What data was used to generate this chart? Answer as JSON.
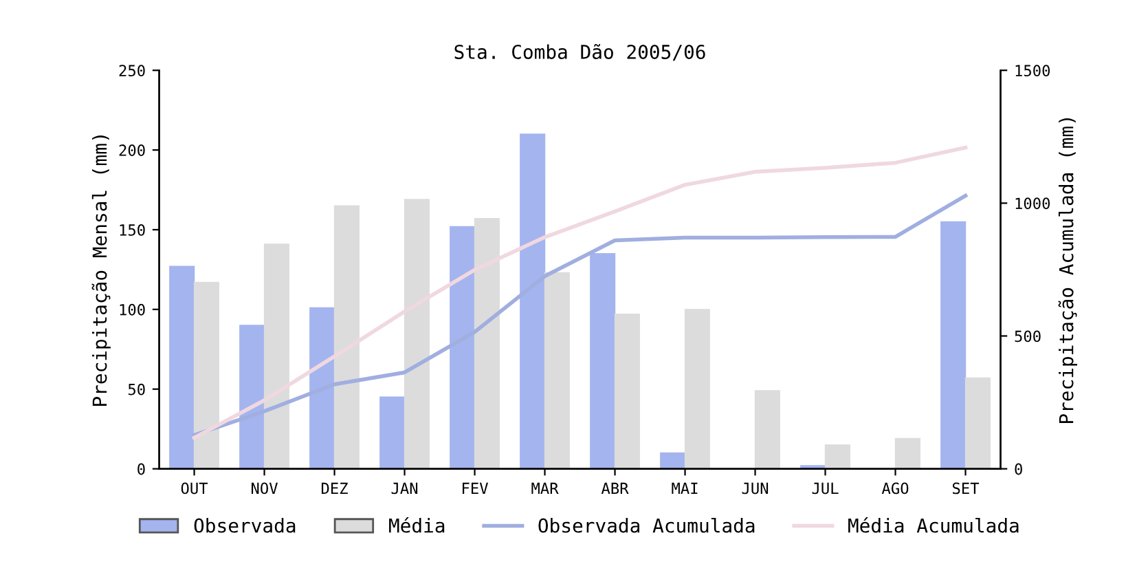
{
  "chart_data": {
    "type": "bar",
    "title": "Sta. Comba Dão 2005/06",
    "ylabel": "Precipitação Mensal (mm)",
    "y2label": "Precipitação Acumulada (mm)",
    "categories": [
      "OUT",
      "NOV",
      "DEZ",
      "JAN",
      "FEV",
      "MAR",
      "ABR",
      "MAI",
      "JUN",
      "JUL",
      "AGO",
      "SET"
    ],
    "series": [
      {
        "name": "Observada",
        "color": "#a4b4ee",
        "values": [
          127,
          90,
          101,
          45,
          152,
          210,
          135,
          10,
          0,
          2,
          null,
          155
        ]
      },
      {
        "name": "Média",
        "color": "#dcdcdc",
        "values": [
          117,
          141,
          165,
          169,
          157,
          123,
          97,
          100,
          49,
          15,
          19,
          57
        ]
      },
      {
        "name": "Observada Acumulada",
        "type": "line",
        "axis": "y2",
        "color": "#a0aee0",
        "values": [
          127,
          217,
          318,
          363,
          515,
          725,
          860,
          870,
          870,
          872,
          873,
          1028
        ]
      },
      {
        "name": "Média Acumulada",
        "type": "line",
        "axis": "y2",
        "color": "#f0d8e0",
        "values": [
          117,
          258,
          423,
          592,
          749,
          872,
          969,
          1069,
          1118,
          1133,
          1152,
          1209
        ]
      }
    ],
    "ylim": [
      0,
      250
    ],
    "yticks": [
      0,
      50,
      100,
      150,
      200,
      250
    ],
    "y2lim": [
      0,
      1500
    ],
    "y2ticks": [
      0,
      500,
      1000,
      1500
    ],
    "legend": "bottom",
    "grid": false
  }
}
